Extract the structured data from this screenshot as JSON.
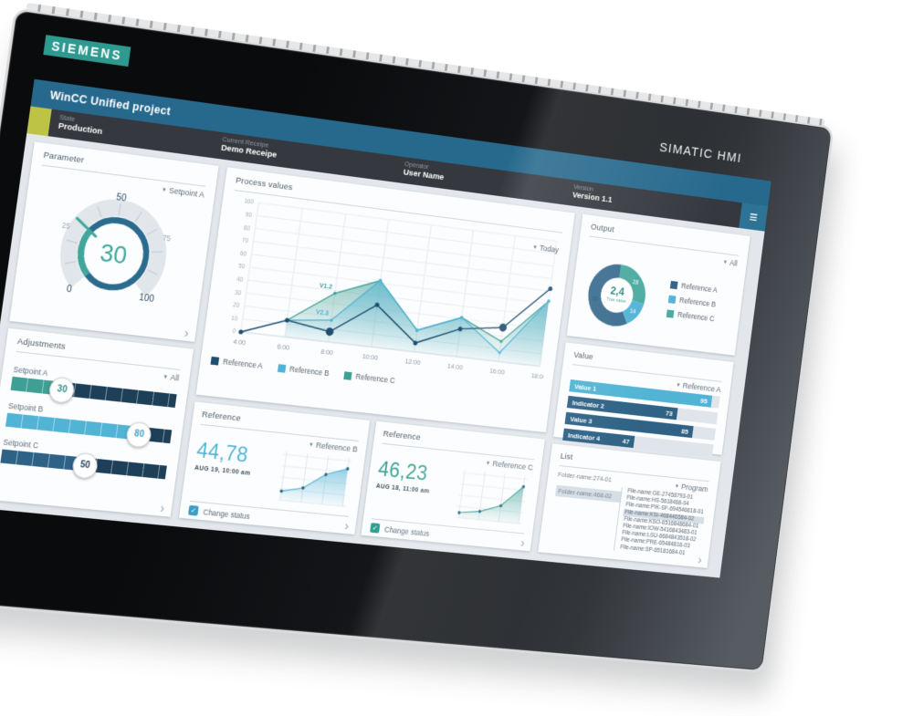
{
  "device": {
    "brand_logo": "SIEMENS",
    "model_label": "SIMATIC HMI"
  },
  "icons": {
    "menu": "≡",
    "caret": "▾",
    "chevron": "›",
    "check": "✓"
  },
  "header": {
    "title": "WinCC Unified project",
    "groups": [
      {
        "label": "State",
        "value": "Production"
      },
      {
        "label": "Current Receipe",
        "value": "Demo Receipe"
      },
      {
        "label": "Operator",
        "value": "User Name"
      },
      {
        "label": "Version",
        "value": "Version 1.1"
      }
    ]
  },
  "cards": {
    "parameter": {
      "title": "Parameter",
      "dropdown": "Setpoint A",
      "chart_data": {
        "type": "gauge",
        "value": 30,
        "min": 0,
        "max": 100,
        "tick_labels": [
          "0",
          "25",
          "50",
          "75",
          "100"
        ],
        "value_color": "#3fa89b",
        "ring_color": "#2b6b8d",
        "arc_color": "#3fa89b"
      }
    },
    "adjustments": {
      "title": "Adjustments",
      "dropdown": "All",
      "sliders": [
        {
          "label": "Setpoint A",
          "value": 30,
          "fill_color": "#3f9f95",
          "text_color": "#2f8f86"
        },
        {
          "label": "Setpoint B",
          "value": 80,
          "fill_color": "#52b4d5",
          "text_color": "#3da3c7"
        },
        {
          "label": "Setpoint C",
          "value": 50,
          "fill_color": "#2e6186",
          "text_color": "#24455e"
        }
      ]
    },
    "process": {
      "title": "Process values",
      "dropdown": "Today",
      "chart_data": {
        "type": "line",
        "x_labels": [
          "4:00",
          "6:00",
          "8:00",
          "10:00",
          "12:00",
          "14:00",
          "16:00",
          "18:00"
        ],
        "ylim": [
          0,
          100
        ],
        "y_tick_step": 10,
        "series": [
          {
            "name": "Reference A",
            "color": "#1f4e6e",
            "kind": "line",
            "values": [
              0,
              13,
              8,
              33,
              7,
              22,
              27,
              62
            ],
            "emphasis_points": [
              2,
              6
            ]
          },
          {
            "name": "Reference B",
            "color": "#52b4d5",
            "kind": "area",
            "values": [
              null,
              13,
              17,
              52,
              17,
              31,
              7,
              52
            ]
          },
          {
            "name": "Reference C",
            "color": "#41a096",
            "kind": "area",
            "values": [
              null,
              13,
              38,
              52,
              17,
              31,
              16,
              52
            ]
          }
        ],
        "annotations": [
          {
            "text": "V1.2",
            "x_index": 2,
            "y": 38,
            "color": "#41a096"
          },
          {
            "text": "V2.3",
            "x_index": 2,
            "y": 17,
            "color": "#52b4d5"
          }
        ],
        "legend": [
          "Reference A",
          "Reference B",
          "Reference C"
        ]
      }
    },
    "reference_b": {
      "title": "Reference",
      "dropdown": "Reference B",
      "value": "44,78",
      "timestamp": "AUG 19, 10:00 am",
      "checkbox_label": "Change status",
      "checked": true,
      "accent": "#52b4d5",
      "chart_data": {
        "type": "area",
        "values": [
          14,
          22,
          46,
          58
        ],
        "ymax": 70
      }
    },
    "reference_c": {
      "title": "Reference",
      "dropdown": "Reference C",
      "value": "46,23",
      "timestamp": "AUG 18, 11:00 am",
      "checkbox_label": "Change status",
      "checked": true,
      "accent": "#3fa396",
      "chart_data": {
        "type": "area",
        "values": [
          8,
          13,
          25,
          58
        ],
        "ymax": 70
      }
    },
    "output": {
      "title": "Output",
      "dropdown": "All",
      "chart_data": {
        "type": "pie",
        "center_value": "2,4",
        "center_label": "True value",
        "center_color": "#2d8c83",
        "segments": [
          {
            "name": "Reference C",
            "value": 28,
            "color": "#4caaa0"
          },
          {
            "name": "Reference B",
            "value": 14,
            "color": "#52b4d5"
          },
          {
            "name": "Reference A",
            "value": 58,
            "color": "#3c6e90"
          }
        ],
        "legend": [
          {
            "label": "Reference A",
            "color": "#2f6285"
          },
          {
            "label": "Reference B",
            "color": "#52b4d5"
          },
          {
            "label": "Reference C",
            "color": "#4caaa0"
          }
        ]
      }
    },
    "value": {
      "title": "Value",
      "dropdown": "Reference A",
      "chart_data": {
        "type": "bar",
        "xmax": 100,
        "bars": [
          {
            "label": "Value 1",
            "value": 95,
            "color": "#52b4d5"
          },
          {
            "label": "Indicator 2",
            "value": 73,
            "color": "#2f6285"
          },
          {
            "label": "Value 3",
            "value": 85,
            "color": "#2f6285"
          },
          {
            "label": "Indicator 4",
            "value": 47,
            "color": "#2f6285"
          }
        ]
      }
    },
    "list": {
      "title": "List",
      "dropdown": "Program",
      "folders": [
        {
          "name": "Folder-name:274-01",
          "highlighted": false
        },
        {
          "name": "Folder-name:468-02",
          "highlighted": true
        }
      ],
      "files": [
        {
          "name": "File-name:GE-27458793-01",
          "highlighted": false
        },
        {
          "name": "File-name:HS-5618468-04",
          "highlighted": false
        },
        {
          "name": "File-name:PIK-SF-694546618-01",
          "highlighted": false
        },
        {
          "name": "File-name:KSI-468446584-02",
          "highlighted": true
        },
        {
          "name": "File-name:KSO-6516848684-01",
          "highlighted": false
        },
        {
          "name": "File-name:IOW-5416843483-01",
          "highlighted": false
        },
        {
          "name": "File-name:LSU-6684843518-02",
          "highlighted": false
        },
        {
          "name": "File-name:PRE-65484816-03",
          "highlighted": false
        },
        {
          "name": "File-name:SP-65181684-01",
          "highlighted": false
        }
      ]
    }
  },
  "colors": {
    "titlebar": "#27698d",
    "statusbar": "#35393f",
    "state_square": "#bdc345",
    "menu_bg": "#2d7396",
    "screen_bg": "#e3e7ec",
    "siemens_teal": "#2e998f",
    "slider_track": "#1e3f58"
  }
}
